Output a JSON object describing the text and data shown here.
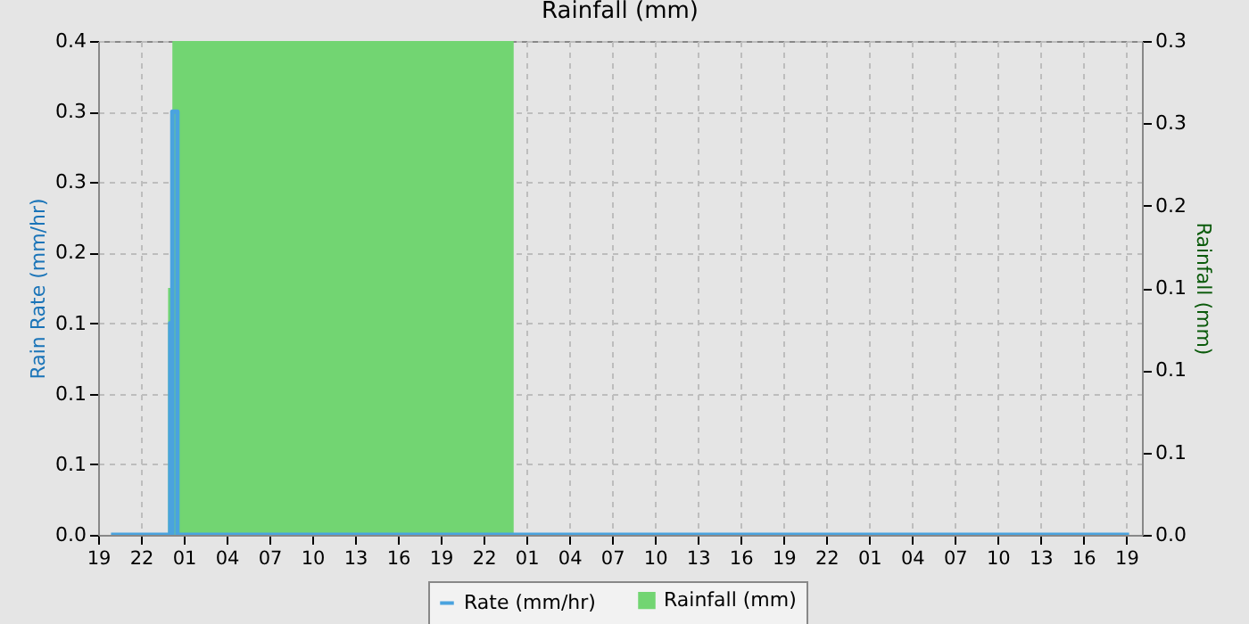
{
  "chart_data": {
    "type": "line",
    "title": "Rainfall (mm)",
    "ylabel": "Rain Rate (mm/hr)",
    "y2label": "Rainfall (mm)",
    "xlim": [
      "--01-01T19:00",
      "--01-04T20:06"
    ],
    "xticks": [
      {
        "value": "--01-01T19:00",
        "label": "19"
      },
      {
        "value": "--01-01T22:00",
        "label": "22"
      },
      {
        "value": "--01-02T01:00",
        "label": "01"
      },
      {
        "value": "--01-02T04:00",
        "label": "04"
      },
      {
        "value": "--01-02T07:00",
        "label": "07"
      },
      {
        "value": "--01-02T10:00",
        "label": "10"
      },
      {
        "value": "--01-02T13:00",
        "label": "13"
      },
      {
        "value": "--01-02T16:00",
        "label": "16"
      },
      {
        "value": "--01-02T19:00",
        "label": "19"
      },
      {
        "value": "--01-02T22:00",
        "label": "22"
      },
      {
        "value": "--01-03T01:00",
        "label": "01"
      },
      {
        "value": "--01-03T04:00",
        "label": "04"
      },
      {
        "value": "--01-03T07:00",
        "label": "07"
      },
      {
        "value": "--01-03T10:00",
        "label": "10"
      },
      {
        "value": "--01-03T13:00",
        "label": "13"
      },
      {
        "value": "--01-03T16:00",
        "label": "16"
      },
      {
        "value": "--01-03T19:00",
        "label": "19"
      },
      {
        "value": "--01-03T22:00",
        "label": "22"
      },
      {
        "value": "--01-04T01:00",
        "label": "01"
      },
      {
        "value": "--01-04T04:00",
        "label": "04"
      },
      {
        "value": "--01-04T07:00",
        "label": "07"
      },
      {
        "value": "--01-04T10:00",
        "label": "10"
      },
      {
        "value": "--01-04T13:00",
        "label": "13"
      },
      {
        "value": "--01-04T16:00",
        "label": "16"
      },
      {
        "value": "--01-04T19:00",
        "label": "19"
      }
    ],
    "ylim": [
      0,
      0.35
    ],
    "yticks": [
      {
        "value": 0,
        "label": "0.0"
      },
      {
        "value": 0.05,
        "label": "0.1"
      },
      {
        "value": 0.1,
        "label": "0.1"
      },
      {
        "value": 0.15,
        "label": "0.1"
      },
      {
        "value": 0.2,
        "label": "0.2"
      },
      {
        "value": 0.25,
        "label": "0.3"
      },
      {
        "value": 0.3,
        "label": "0.3"
      },
      {
        "value": 0.35,
        "label": "0.4"
      }
    ],
    "y2lim": [
      0,
      0.3
    ],
    "y2ticks": [
      {
        "value": 0,
        "label": "0.0"
      },
      {
        "value": 0.05,
        "label": "0.1"
      },
      {
        "value": 0.1,
        "label": "0.1"
      },
      {
        "value": 0.15,
        "label": "0.1"
      },
      {
        "value": 0.2,
        "label": "0.2"
      },
      {
        "value": 0.25,
        "label": "0.3"
      },
      {
        "value": 0.3,
        "label": "0.3"
      }
    ],
    "grid": true,
    "legend": "bottom",
    "series": [
      {
        "name": "Rate (mm/hr)",
        "type": "line",
        "color": "#4aa3df",
        "x": [
          "--01-01T19:54",
          "--01-02T00:03",
          "--01-02T00:03",
          "--01-02T00:09",
          "--01-02T00:09",
          "--01-02T00:12",
          "--01-02T00:12",
          "--01-02T00:33",
          "--01-02T00:33",
          "--01-04T19:12"
        ],
        "values": [
          0,
          0,
          0.15,
          0.15,
          0,
          0,
          0.3,
          0.3,
          0,
          0
        ]
      },
      {
        "name": "Rainfall (mm)",
        "type": "area",
        "axis": "y2",
        "color": "#72d572",
        "x": [
          "--01-01T23:54",
          "--01-02T00:12",
          "--01-03T00:06"
        ],
        "values": [
          0.15,
          0.3,
          0
        ]
      }
    ]
  }
}
